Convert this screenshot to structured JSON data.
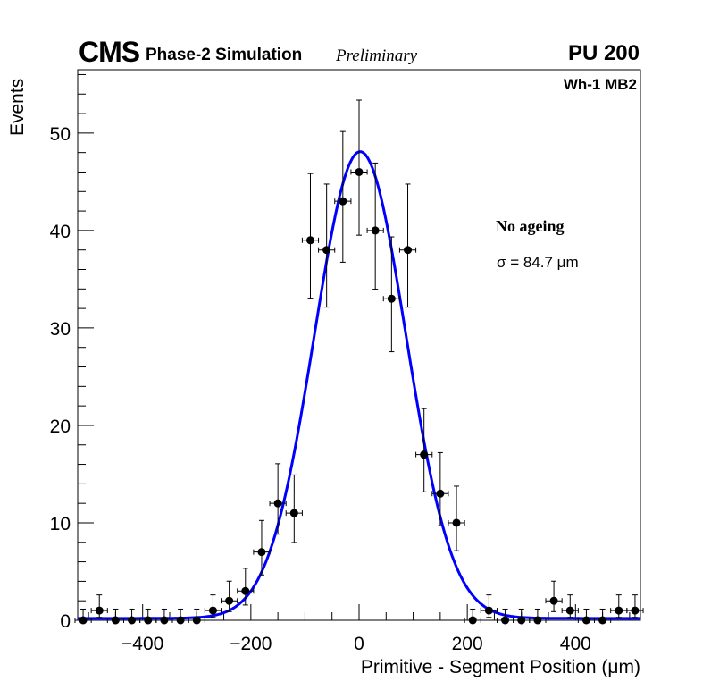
{
  "header": {
    "experiment": "CMS",
    "sim_label": "Phase-2 Simulation",
    "status": "Preliminary",
    "pileup": "PU 200"
  },
  "chart_data": {
    "type": "scatter",
    "title": "",
    "region": "Wh-1 MB2",
    "condition": "No ageing",
    "fit_label": "σ = 84.7 μm",
    "xlabel": "Primitive - Segment Position (μm)",
    "ylabel": "Events",
    "xlim": [
      -520,
      520
    ],
    "ylim": [
      0,
      56.5
    ],
    "xticks": [
      -400,
      -200,
      0,
      200,
      400
    ],
    "xtick_labels": [
      "−400",
      "−200",
      "0",
      "200",
      "400"
    ],
    "yticks": [
      0,
      10,
      20,
      30,
      40,
      50
    ],
    "ytick_labels": [
      "0",
      "10",
      "20",
      "30",
      "40",
      "50"
    ],
    "bin_width": 30,
    "series": [
      {
        "name": "Data",
        "x": [
          -510,
          -480,
          -450,
          -420,
          -390,
          -360,
          -330,
          -300,
          -270,
          -240,
          -210,
          -180,
          -150,
          -120,
          -90,
          -60,
          -30,
          0,
          30,
          60,
          90,
          120,
          150,
          180,
          210,
          240,
          270,
          300,
          330,
          360,
          390,
          420,
          450,
          480,
          510
        ],
        "y": [
          0,
          1,
          0,
          0,
          0,
          0,
          0,
          0,
          1,
          2,
          3,
          7,
          12,
          11,
          39,
          38,
          43,
          46,
          40,
          33,
          38,
          17,
          13,
          10,
          0,
          1,
          0,
          0,
          0,
          2,
          1,
          0,
          0,
          1,
          1
        ]
      },
      {
        "name": "Gaussian fit",
        "color": "#0000ff",
        "amplitude": 47.9,
        "mean": 2,
        "sigma": 84.7,
        "baseline": 0.2
      }
    ]
  }
}
